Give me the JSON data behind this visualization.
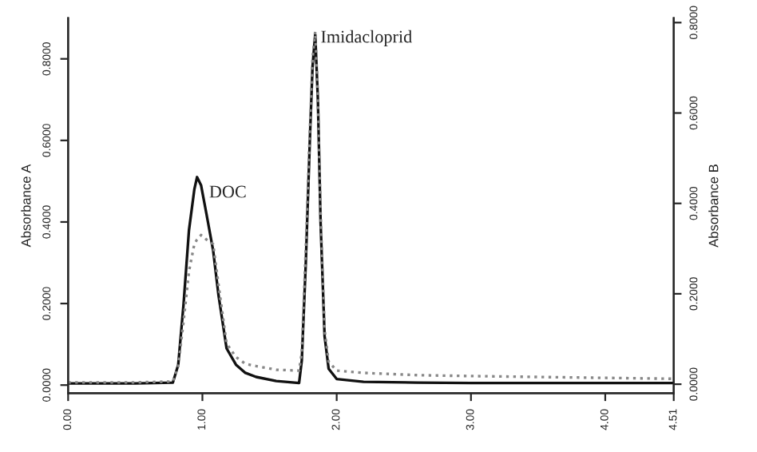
{
  "chart_data": {
    "type": "line",
    "ylabel": "Absorbance A",
    "y2label": "Absorbance B",
    "x": [
      0,
      0.5,
      0.78,
      0.82,
      0.86,
      0.9,
      0.94,
      0.96,
      0.99,
      1.03,
      1.08,
      1.12,
      1.18,
      1.25,
      1.32,
      1.4,
      1.55,
      1.72,
      1.74,
      1.77,
      1.8,
      1.82,
      1.84,
      1.86,
      1.88,
      1.91,
      1.94,
      2.0,
      2.2,
      2.6,
      3.0,
      3.5,
      4.0,
      4.51
    ],
    "series": [
      {
        "color": "#111111",
        "line_style": "solid",
        "values": [
          0.004,
          0.004,
          0.006,
          0.05,
          0.2,
          0.38,
          0.48,
          0.51,
          0.49,
          0.42,
          0.33,
          0.22,
          0.09,
          0.05,
          0.03,
          0.02,
          0.01,
          0.005,
          0.06,
          0.3,
          0.6,
          0.78,
          0.86,
          0.7,
          0.4,
          0.12,
          0.04,
          0.015,
          0.008,
          0.006,
          0.005,
          0.005,
          0.005,
          0.005
        ]
      },
      {
        "color": "#888888",
        "line_style": "dotted",
        "axis": "y2",
        "values": [
          0.004,
          0.004,
          0.006,
          0.04,
          0.14,
          0.25,
          0.31,
          0.32,
          0.33,
          0.32,
          0.31,
          0.22,
          0.09,
          0.06,
          0.045,
          0.04,
          0.032,
          0.03,
          0.07,
          0.3,
          0.56,
          0.72,
          0.78,
          0.64,
          0.38,
          0.12,
          0.05,
          0.03,
          0.025,
          0.02,
          0.018,
          0.016,
          0.014,
          0.012
        ]
      }
    ],
    "xlim": [
      0,
      4.51
    ],
    "xticks": [
      {
        "value": 0,
        "label": "0.00"
      },
      {
        "value": 1,
        "label": "1.00"
      },
      {
        "value": 2,
        "label": "2.00"
      },
      {
        "value": 3,
        "label": "3.00"
      },
      {
        "value": 4,
        "label": "4.00"
      },
      {
        "value": 4.51,
        "label": "4.51"
      }
    ],
    "ylim": [
      -0.02,
      0.9
    ],
    "yticks": [
      {
        "value": 0,
        "label": "0.0000"
      },
      {
        "value": 0.2,
        "label": "0.2000"
      },
      {
        "value": 0.4,
        "label": "0.4000"
      },
      {
        "value": 0.6,
        "label": "0.6000"
      },
      {
        "value": 0.8,
        "label": "0.8000"
      }
    ],
    "y2lim": [
      -0.02,
      0.81
    ],
    "y2ticks": [
      {
        "value": 0,
        "label": "0.0000"
      },
      {
        "value": 0.2,
        "label": "0.2000"
      },
      {
        "value": 0.4,
        "label": "0.4000"
      },
      {
        "value": 0.6,
        "label": "0.6000"
      },
      {
        "value": 0.8,
        "label": "0.8000"
      }
    ],
    "annotations": [
      {
        "text": "DOC",
        "x": 1.05,
        "y": 0.46
      },
      {
        "text": "Imidacloprid",
        "x": 1.88,
        "y": 0.84
      }
    ],
    "grid": false,
    "legend": false
  }
}
